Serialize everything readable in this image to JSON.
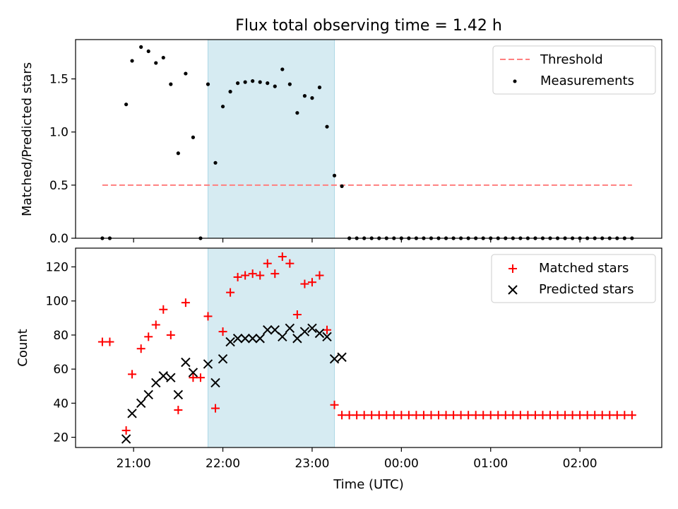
{
  "chart_data": [
    {
      "type": "scatter",
      "title": "Flux total observing time = 1.42 h",
      "ylabel": "Matched/Predicted stars",
      "xlabel": "",
      "xlim": [
        "20:21",
        "02:55"
      ],
      "ylim": [
        0,
        1.87
      ],
      "yticks": [
        0.0,
        0.5,
        1.0,
        1.5
      ],
      "yticklabels": [
        "0.0",
        "0.5",
        "1.0",
        "1.5"
      ],
      "shaded_span": [
        "21:50",
        "23:15"
      ],
      "shaded_color": "#add8e6",
      "legend": {
        "position": "top-right",
        "entries": [
          "Threshold",
          "Measurements"
        ]
      },
      "series": [
        {
          "name": "Threshold",
          "style": "dashed-line",
          "color": "#ff7f7f",
          "x": [
            "20:39",
            "02:35"
          ],
          "y": [
            0.5,
            0.5
          ]
        },
        {
          "name": "Measurements",
          "style": "dot",
          "color": "#000000",
          "x": [
            "20:39",
            "20:44",
            "20:55",
            "20:59",
            "21:05",
            "21:10",
            "21:15",
            "21:20",
            "21:25",
            "21:30",
            "21:35",
            "21:40",
            "21:45",
            "21:50",
            "21:55",
            "22:00",
            "22:05",
            "22:10",
            "22:15",
            "22:20",
            "22:25",
            "22:30",
            "22:35",
            "22:40",
            "22:45",
            "22:50",
            "22:55",
            "23:00",
            "23:05",
            "23:10",
            "23:15",
            "23:20",
            "23:25",
            "23:30",
            "23:35",
            "23:40",
            "23:45",
            "23:50",
            "23:55",
            "00:00",
            "00:05",
            "00:10",
            "00:15",
            "00:20",
            "00:25",
            "00:30",
            "00:35",
            "00:40",
            "00:45",
            "00:50",
            "00:55",
            "01:00",
            "01:05",
            "01:10",
            "01:15",
            "01:20",
            "01:25",
            "01:30",
            "01:35",
            "01:40",
            "01:45",
            "01:50",
            "01:55",
            "02:00",
            "02:05",
            "02:10",
            "02:15",
            "02:20",
            "02:25",
            "02:30",
            "02:35"
          ],
          "y": [
            0,
            0,
            1.26,
            1.67,
            1.8,
            1.76,
            1.65,
            1.7,
            1.45,
            0.8,
            1.55,
            0.95,
            0,
            1.45,
            0.71,
            1.24,
            1.38,
            1.46,
            1.47,
            1.48,
            1.47,
            1.46,
            1.43,
            1.59,
            1.45,
            1.18,
            1.34,
            1.32,
            1.42,
            1.05,
            0.59,
            0.49,
            0,
            0,
            0,
            0,
            0,
            0,
            0,
            0,
            0,
            0,
            0,
            0,
            0,
            0,
            0,
            0,
            0,
            0,
            0,
            0,
            0,
            0,
            0,
            0,
            0,
            0,
            0,
            0,
            0,
            0,
            0,
            0,
            0,
            0,
            0,
            0,
            0,
            0,
            0
          ]
        }
      ]
    },
    {
      "type": "scatter",
      "title": "",
      "ylabel": "Count",
      "xlabel": "Time (UTC)",
      "xlim": [
        "20:21",
        "02:55"
      ],
      "ylim": [
        14,
        131
      ],
      "yticks": [
        20,
        40,
        60,
        80,
        100,
        120
      ],
      "yticklabels": [
        "20",
        "40",
        "60",
        "80",
        "100",
        "120"
      ],
      "xticks": [
        "21:00",
        "22:00",
        "23:00",
        "00:00",
        "01:00",
        "02:00"
      ],
      "xticklabels": [
        "21:00",
        "22:00",
        "23:00",
        "00:00",
        "01:00",
        "02:00"
      ],
      "shaded_span": [
        "21:50",
        "23:15"
      ],
      "shaded_color": "#add8e6",
      "legend": {
        "position": "top-right",
        "entries": [
          "Matched stars",
          "Predicted stars"
        ]
      },
      "series": [
        {
          "name": "Matched stars",
          "marker": "plus",
          "color": "#ff0000",
          "x": [
            "20:39",
            "20:44",
            "20:55",
            "20:59",
            "21:05",
            "21:10",
            "21:15",
            "21:20",
            "21:25",
            "21:30",
            "21:35",
            "21:40",
            "21:45",
            "21:50",
            "21:55",
            "22:00",
            "22:05",
            "22:10",
            "22:15",
            "22:20",
            "22:25",
            "22:30",
            "22:35",
            "22:40",
            "22:45",
            "22:50",
            "22:55",
            "23:00",
            "23:05",
            "23:10",
            "23:15",
            "23:20",
            "23:25",
            "23:30",
            "23:35",
            "23:40",
            "23:45",
            "23:50",
            "23:55",
            "00:00",
            "00:05",
            "00:10",
            "00:15",
            "00:20",
            "00:25",
            "00:30",
            "00:35",
            "00:40",
            "00:45",
            "00:50",
            "00:55",
            "01:00",
            "01:05",
            "01:10",
            "01:15",
            "01:20",
            "01:25",
            "01:30",
            "01:35",
            "01:40",
            "01:45",
            "01:50",
            "01:55",
            "02:00",
            "02:05",
            "02:10",
            "02:15",
            "02:20",
            "02:25",
            "02:30",
            "02:35"
          ],
          "y": [
            76,
            76,
            24,
            57,
            72,
            79,
            86,
            95,
            80,
            36,
            99,
            55,
            55,
            91,
            37,
            82,
            105,
            114,
            115,
            116,
            115,
            122,
            116,
            126,
            122,
            92,
            110,
            111,
            115,
            83,
            39,
            33,
            33,
            33,
            33,
            33,
            33,
            33,
            33,
            33,
            33,
            33,
            33,
            33,
            33,
            33,
            33,
            33,
            33,
            33,
            33,
            33,
            33,
            33,
            33,
            33,
            33,
            33,
            33,
            33,
            33,
            33,
            33,
            33,
            33,
            33,
            33,
            33,
            33,
            33,
            33
          ]
        },
        {
          "name": "Predicted stars",
          "marker": "x",
          "color": "#000000",
          "x": [
            "20:55",
            "20:59",
            "21:05",
            "21:10",
            "21:15",
            "21:20",
            "21:25",
            "21:30",
            "21:35",
            "21:40",
            "21:50",
            "21:55",
            "22:00",
            "22:05",
            "22:10",
            "22:15",
            "22:20",
            "22:25",
            "22:30",
            "22:35",
            "22:40",
            "22:45",
            "22:50",
            "22:55",
            "23:00",
            "23:05",
            "23:10",
            "23:15",
            "23:20"
          ],
          "y": [
            19,
            34,
            40,
            45,
            52,
            56,
            55,
            45,
            64,
            58,
            63,
            52,
            66,
            76,
            78,
            78,
            78,
            78,
            83,
            83,
            79,
            84,
            78,
            82,
            84,
            81,
            79,
            66,
            67
          ]
        }
      ]
    }
  ]
}
